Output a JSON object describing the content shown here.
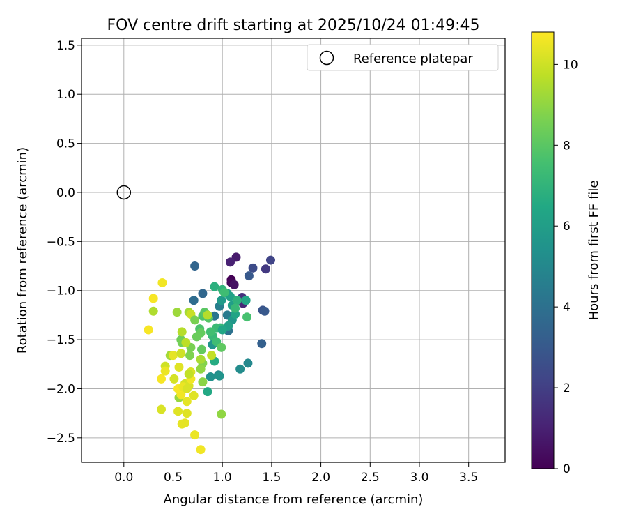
{
  "chart_data": {
    "type": "scatter",
    "title": "FOV centre drift starting at 2025/10/24 01:49:45",
    "xlabel": "Angular distance from reference (arcmin)",
    "ylabel": "Rotation from reference (arcmin)",
    "xlim": [
      -0.43,
      3.87
    ],
    "ylim": [
      -2.75,
      1.57
    ],
    "x_ticks": [
      0.0,
      0.5,
      1.0,
      1.5,
      2.0,
      2.5,
      3.0,
      3.5
    ],
    "x_tick_labels": [
      "0.0",
      "0.5",
      "1.0",
      "1.5",
      "2.0",
      "2.5",
      "3.0",
      "3.5"
    ],
    "y_ticks": [
      1.5,
      1.0,
      0.5,
      0.0,
      -0.5,
      -1.0,
      -1.5,
      -2.0,
      -2.5
    ],
    "y_tick_labels": [
      "1.5",
      "1.0",
      "0.5",
      "0.0",
      "−0.5",
      "−1.0",
      "−1.5",
      "−2.0",
      "−2.5"
    ],
    "grid": true,
    "legend": {
      "label": "Reference platepar",
      "position": "top-right"
    },
    "reference_point": {
      "x": 0.0,
      "y": 0.0
    },
    "colorbar": {
      "label": "Hours from first FF file",
      "colormap": "viridis",
      "min": 0,
      "max": 10.8,
      "ticks": [
        0,
        2,
        4,
        6,
        8,
        10
      ],
      "tick_labels": [
        "0",
        "2",
        "4",
        "6",
        "8",
        "10"
      ]
    },
    "points": [
      {
        "x": 1.09,
        "y": -0.89,
        "c": 0.0
      },
      {
        "x": 1.09,
        "y": -0.92,
        "c": 0.2
      },
      {
        "x": 1.12,
        "y": -0.94,
        "c": 0.5
      },
      {
        "x": 1.14,
        "y": -0.66,
        "c": 0.8
      },
      {
        "x": 1.08,
        "y": -0.71,
        "c": 1.0
      },
      {
        "x": 1.21,
        "y": -1.13,
        "c": 1.2
      },
      {
        "x": 1.2,
        "y": -1.07,
        "c": 1.5
      },
      {
        "x": 1.44,
        "y": -0.78,
        "c": 1.8
      },
      {
        "x": 1.49,
        "y": -0.69,
        "c": 2.2
      },
      {
        "x": 1.31,
        "y": -0.77,
        "c": 2.5
      },
      {
        "x": 1.41,
        "y": -1.2,
        "c": 2.8
      },
      {
        "x": 1.43,
        "y": -1.21,
        "c": 3.0
      },
      {
        "x": 1.27,
        "y": -0.85,
        "c": 3.0
      },
      {
        "x": 1.4,
        "y": -1.54,
        "c": 3.3
      },
      {
        "x": 0.72,
        "y": -0.75,
        "c": 3.5
      },
      {
        "x": 0.8,
        "y": -1.03,
        "c": 3.6
      },
      {
        "x": 0.71,
        "y": -1.1,
        "c": 3.8
      },
      {
        "x": 1.06,
        "y": -1.41,
        "c": 4.0
      },
      {
        "x": 0.92,
        "y": -1.26,
        "c": 4.2
      },
      {
        "x": 1.05,
        "y": -1.25,
        "c": 4.4
      },
      {
        "x": 0.97,
        "y": -1.16,
        "c": 4.6
      },
      {
        "x": 1.26,
        "y": -1.74,
        "c": 5.0
      },
      {
        "x": 1.18,
        "y": -1.8,
        "c": 5.2
      },
      {
        "x": 0.96,
        "y": -1.86,
        "c": 5.0
      },
      {
        "x": 0.88,
        "y": -1.88,
        "c": 5.4
      },
      {
        "x": 0.97,
        "y": -1.87,
        "c": 5.5
      },
      {
        "x": 0.9,
        "y": -1.55,
        "c": 5.6
      },
      {
        "x": 1.1,
        "y": -1.3,
        "c": 5.7
      },
      {
        "x": 0.99,
        "y": -1.1,
        "c": 5.8
      },
      {
        "x": 1.1,
        "y": -1.15,
        "c": 6.0
      },
      {
        "x": 1.05,
        "y": -1.03,
        "c": 6.1
      },
      {
        "x": 1.08,
        "y": -1.06,
        "c": 6.2
      },
      {
        "x": 1.13,
        "y": -1.24,
        "c": 6.3
      },
      {
        "x": 1.24,
        "y": -1.1,
        "c": 6.4
      },
      {
        "x": 0.85,
        "y": -2.03,
        "c": 6.5
      },
      {
        "x": 0.92,
        "y": -1.72,
        "c": 6.6
      },
      {
        "x": 0.92,
        "y": -0.96,
        "c": 6.8
      },
      {
        "x": 1.0,
        "y": -0.99,
        "c": 7.0
      },
      {
        "x": 0.98,
        "y": -1.38,
        "c": 7.1
      },
      {
        "x": 0.9,
        "y": -1.46,
        "c": 7.2
      },
      {
        "x": 0.94,
        "y": -1.38,
        "c": 7.3
      },
      {
        "x": 0.94,
        "y": -1.52,
        "c": 7.4
      },
      {
        "x": 0.88,
        "y": -1.42,
        "c": 7.5
      },
      {
        "x": 1.25,
        "y": -1.27,
        "c": 7.6
      },
      {
        "x": 0.77,
        "y": -1.39,
        "c": 7.7
      },
      {
        "x": 0.8,
        "y": -1.26,
        "c": 7.8
      },
      {
        "x": 0.86,
        "y": -1.28,
        "c": 7.9
      },
      {
        "x": 0.82,
        "y": -1.22,
        "c": 8.0
      },
      {
        "x": 0.99,
        "y": -1.58,
        "c": 8.1
      },
      {
        "x": 0.79,
        "y": -1.6,
        "c": 8.2
      },
      {
        "x": 0.78,
        "y": -1.43,
        "c": 8.2
      },
      {
        "x": 0.74,
        "y": -1.47,
        "c": 8.3
      },
      {
        "x": 0.58,
        "y": -1.5,
        "c": 8.4
      },
      {
        "x": 0.59,
        "y": -1.53,
        "c": 8.5
      },
      {
        "x": 0.68,
        "y": -1.58,
        "c": 8.6
      },
      {
        "x": 0.67,
        "y": -1.66,
        "c": 8.7
      },
      {
        "x": 0.8,
        "y": -1.74,
        "c": 8.8
      },
      {
        "x": 0.8,
        "y": -1.93,
        "c": 8.9
      },
      {
        "x": 0.78,
        "y": -1.8,
        "c": 9.0
      },
      {
        "x": 0.99,
        "y": -2.26,
        "c": 9.0
      },
      {
        "x": 0.56,
        "y": -2.09,
        "c": 9.1
      },
      {
        "x": 0.54,
        "y": -1.22,
        "c": 9.2
      },
      {
        "x": 0.66,
        "y": -1.22,
        "c": 9.3
      },
      {
        "x": 0.47,
        "y": -1.66,
        "c": 9.3
      },
      {
        "x": 0.3,
        "y": -1.21,
        "c": 9.5
      },
      {
        "x": 0.59,
        "y": -1.42,
        "c": 9.6
      },
      {
        "x": 0.63,
        "y": -1.53,
        "c": 9.7
      },
      {
        "x": 0.89,
        "y": -1.66,
        "c": 9.8
      },
      {
        "x": 0.68,
        "y": -1.24,
        "c": 9.9
      },
      {
        "x": 0.42,
        "y": -1.77,
        "c": 10.0
      },
      {
        "x": 0.51,
        "y": -1.9,
        "c": 10.1
      },
      {
        "x": 0.62,
        "y": -1.95,
        "c": 10.1
      },
      {
        "x": 0.66,
        "y": -1.97,
        "c": 10.2
      },
      {
        "x": 0.38,
        "y": -2.21,
        "c": 10.2
      },
      {
        "x": 0.55,
        "y": -2.23,
        "c": 10.3
      },
      {
        "x": 0.64,
        "y": -2.25,
        "c": 10.3
      },
      {
        "x": 0.59,
        "y": -2.36,
        "c": 10.4
      },
      {
        "x": 0.62,
        "y": -2.35,
        "c": 10.4
      },
      {
        "x": 0.72,
        "y": -2.47,
        "c": 10.5
      },
      {
        "x": 0.78,
        "y": -2.62,
        "c": 10.6
      },
      {
        "x": 0.39,
        "y": -0.92,
        "c": 10.6
      },
      {
        "x": 0.3,
        "y": -1.08,
        "c": 10.7
      },
      {
        "x": 0.25,
        "y": -1.4,
        "c": 10.7
      },
      {
        "x": 0.38,
        "y": -1.9,
        "c": 10.7
      },
      {
        "x": 0.42,
        "y": -1.82,
        "c": 10.5
      },
      {
        "x": 0.5,
        "y": -1.66,
        "c": 10.4
      },
      {
        "x": 0.56,
        "y": -1.78,
        "c": 10.3
      },
      {
        "x": 0.58,
        "y": -1.64,
        "c": 10.0
      },
      {
        "x": 0.68,
        "y": -1.83,
        "c": 10.2
      },
      {
        "x": 0.68,
        "y": -1.9,
        "c": 10.6
      },
      {
        "x": 0.71,
        "y": -2.07,
        "c": 10.3
      },
      {
        "x": 0.64,
        "y": -2.13,
        "c": 10.4
      },
      {
        "x": 0.58,
        "y": -2.06,
        "c": 10.6
      },
      {
        "x": 0.55,
        "y": -2.0,
        "c": 10.7
      },
      {
        "x": 0.6,
        "y": -1.98,
        "c": 10.5
      },
      {
        "x": 0.64,
        "y": -2.0,
        "c": 10.2
      },
      {
        "x": 0.66,
        "y": -1.85,
        "c": 9.8
      },
      {
        "x": 0.78,
        "y": -1.7,
        "c": 9.4
      },
      {
        "x": 0.85,
        "y": -1.25,
        "c": 9.6
      },
      {
        "x": 0.72,
        "y": -1.3,
        "c": 8.6
      },
      {
        "x": 1.02,
        "y": -1.02,
        "c": 7.4
      },
      {
        "x": 1.15,
        "y": -1.1,
        "c": 6.9
      },
      {
        "x": 1.13,
        "y": -1.18,
        "c": 7.2
      },
      {
        "x": 1.06,
        "y": -1.36,
        "c": 6.1
      },
      {
        "x": 1.0,
        "y": -1.4,
        "c": 6.4
      }
    ]
  }
}
